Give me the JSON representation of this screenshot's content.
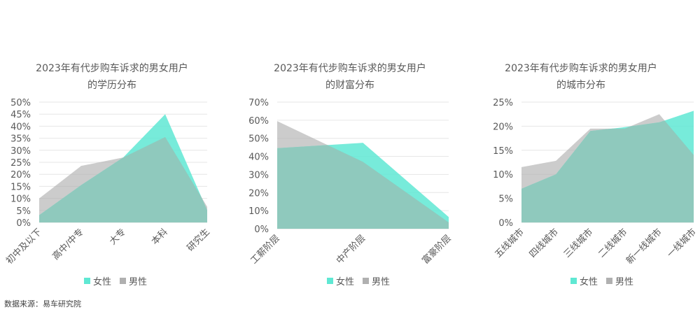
{
  "source": "数据来源：易车研究院",
  "legend": {
    "female": "女性",
    "male": "男性"
  },
  "colors": {
    "female": "#5fe8d3",
    "male": "#b0b0b0",
    "overlap": "#8fc9bd",
    "grid": "#e6e6e6",
    "axis_text": "#595959"
  },
  "chart_data": [
    {
      "type": "area",
      "title": [
        "2023年有代步购车诉求的男女用户",
        "的学历分布"
      ],
      "categories": [
        "初中及以下",
        "高中/中专",
        "大专",
        "本科",
        "研究生"
      ],
      "series": [
        {
          "name": "女性",
          "values": [
            3.0,
            15.5,
            27.0,
            45.0,
            5.0
          ]
        },
        {
          "name": "男性",
          "values": [
            10.0,
            23.5,
            27.0,
            35.5,
            6.5
          ]
        }
      ],
      "ylim": [
        0,
        50
      ],
      "yticks": [
        "0%",
        "5%",
        "10%",
        "15%",
        "20%",
        "25%",
        "30%",
        "35%",
        "40%",
        "45%",
        "50%"
      ],
      "grid": true
    },
    {
      "type": "area",
      "title": [
        "2023年有代步购车诉求的男女用户",
        "的财富分布"
      ],
      "categories": [
        "工薪阶层",
        "中产阶层",
        "富豪阶层"
      ],
      "series": [
        {
          "name": "女性",
          "values": [
            44.5,
            47.5,
            6.5
          ]
        },
        {
          "name": "男性",
          "values": [
            59.5,
            37.0,
            3.5
          ]
        }
      ],
      "ylim": [
        0,
        70
      ],
      "yticks": [
        "0%",
        "10%",
        "20%",
        "30%",
        "40%",
        "50%",
        "60%",
        "70%"
      ],
      "grid": true
    },
    {
      "type": "area",
      "title": [
        "2023年有代步购车诉求的男女用户",
        "的城市分布"
      ],
      "categories": [
        "五线城市",
        "四线城市",
        "三线城市",
        "二线城市",
        "新一线城市",
        "一线城市"
      ],
      "series": [
        {
          "name": "女性",
          "values": [
            7.0,
            10.0,
            19.0,
            19.8,
            20.8,
            23.2
          ]
        },
        {
          "name": "男性",
          "values": [
            11.5,
            12.8,
            19.5,
            19.5,
            22.5,
            14.0
          ]
        }
      ],
      "ylim": [
        0,
        25
      ],
      "yticks": [
        "0%",
        "5%",
        "10%",
        "15%",
        "20%",
        "25%"
      ],
      "grid": true
    }
  ]
}
